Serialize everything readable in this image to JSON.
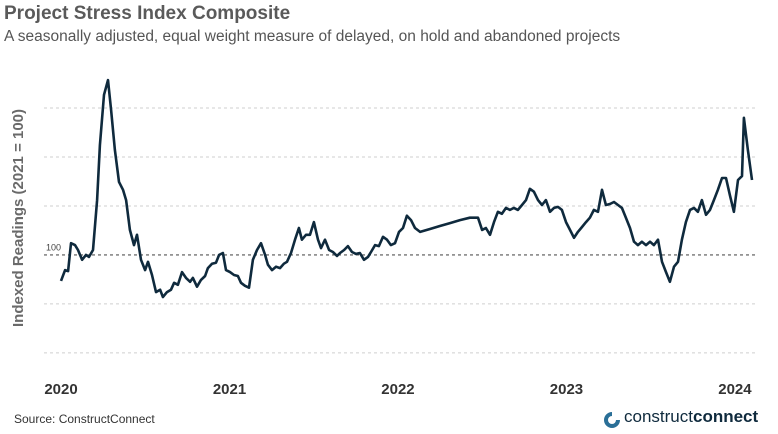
{
  "chart_data": {
    "type": "line",
    "title": "Project Stress Index Composite",
    "subtitle": "A seasonally adjusted, equal weight measure of delayed, on hold and abandoned projects",
    "y_label": "Indexed Readings (2021 = 100)",
    "source": "Source: ConstructConnect",
    "logo": [
      "construct",
      "connect"
    ],
    "xlim": [
      2019.899,
      2024.119
    ],
    "xticks": [
      2020,
      2021,
      2022,
      2023,
      2024
    ],
    "ylim": [
      76.5,
      139.8
    ],
    "yticks": [
      100
    ],
    "ygrid": [
      80,
      90,
      110,
      120,
      130
    ],
    "series": [
      {
        "name": "Project Stress Index Composite",
        "color": "#0f2a3d",
        "x": [
          2020.0,
          2020.024,
          2020.042,
          2020.059,
          2020.083,
          2020.101,
          2020.125,
          2020.148,
          2020.166,
          2020.19,
          2020.214,
          2020.231,
          2020.255,
          2020.279,
          2020.297,
          2020.32,
          2020.344,
          2020.368,
          2020.386,
          2020.409,
          2020.433,
          2020.451,
          2020.475,
          2020.499,
          2020.516,
          2020.54,
          2020.564,
          2020.588,
          2020.605,
          2020.629,
          2020.653,
          2020.671,
          2020.694,
          2020.718,
          2020.742,
          2020.766,
          2020.783,
          2020.807,
          2020.831,
          2020.855,
          2020.872,
          2020.896,
          2020.92,
          2020.938,
          2020.961,
          2020.979,
          2021.003,
          2021.027,
          2021.05,
          2021.068,
          2021.092,
          2021.116,
          2021.139,
          2021.163,
          2021.187,
          2021.211,
          2021.228,
          2021.252,
          2021.276,
          2021.3,
          2021.323,
          2021.341,
          2021.365,
          2021.389,
          2021.412,
          2021.43,
          2021.454,
          2021.478,
          2021.501,
          2021.525,
          2021.543,
          2021.567,
          2021.591,
          2021.614,
          2021.638,
          2021.656,
          2021.68,
          2021.703,
          2021.727,
          2021.751,
          2021.774,
          2021.798,
          2021.822,
          2021.84,
          2021.864,
          2021.887,
          2021.911,
          2021.935,
          2021.958,
          2021.982,
          2022.006,
          2022.03,
          2022.053,
          2022.077,
          2022.101,
          2022.131,
          2022.19,
          2022.249,
          2022.309,
          2022.368,
          2022.427,
          2022.475,
          2022.499,
          2022.522,
          2022.546,
          2022.57,
          2022.593,
          2022.617,
          2022.641,
          2022.665,
          2022.688,
          2022.712,
          2022.736,
          2022.76,
          2022.783,
          2022.807,
          2022.831,
          2022.855,
          2022.878,
          2022.902,
          2022.926,
          2022.95,
          2022.973,
          2022.997,
          2023.021,
          2023.045,
          2023.068,
          2023.092,
          2023.116,
          2023.139,
          2023.163,
          2023.187,
          2023.211,
          2023.234,
          2023.258,
          2023.282,
          2023.306,
          2023.329,
          2023.353,
          2023.377,
          2023.401,
          2023.424,
          2023.448,
          2023.472,
          2023.496,
          2023.519,
          2023.543,
          2023.567,
          2023.591,
          2023.614,
          2023.638,
          2023.662,
          2023.685,
          2023.709,
          2023.733,
          2023.757,
          2023.78,
          2023.804,
          2023.828,
          2023.852,
          2023.875,
          2023.899,
          2023.923,
          2023.947,
          2023.97,
          2023.994,
          2024.018,
          2024.042,
          2024.053,
          2024.077,
          2024.101
        ],
        "values": [
          94.7,
          96.9,
          96.7,
          102.4,
          102,
          101,
          99,
          100,
          99.6,
          101,
          111.2,
          122.4,
          132.7,
          135.7,
          129.6,
          121.4,
          114.9,
          113.3,
          111.2,
          105.1,
          102,
          104.1,
          99,
          96.9,
          98.6,
          95.9,
          92.4,
          92.9,
          91.4,
          92.4,
          92.9,
          94.3,
          93.9,
          96.5,
          95.3,
          94.5,
          95.3,
          93.5,
          94.9,
          95.7,
          97.3,
          98.2,
          98.4,
          100,
          100.4,
          96.9,
          96.5,
          95.9,
          95.7,
          94.3,
          93.7,
          93.3,
          99,
          101,
          102.4,
          100,
          98,
          96.9,
          97.6,
          97.3,
          98.2,
          98.6,
          100.4,
          103.1,
          105.5,
          103.1,
          104.1,
          104.1,
          106.7,
          103.1,
          101.4,
          103.1,
          101,
          100.6,
          99.8,
          100.4,
          101,
          101.8,
          100.6,
          100.2,
          100.4,
          99,
          99.6,
          100.6,
          102,
          101.8,
          103.7,
          103.1,
          102,
          102.4,
          104.7,
          105.5,
          108,
          107.1,
          105.5,
          104.7,
          105.3,
          105.9,
          106.5,
          107.1,
          107.6,
          107.6,
          105.1,
          105.5,
          104.1,
          106.7,
          108.8,
          108.4,
          109.6,
          109.2,
          109.6,
          109.2,
          110.2,
          111.2,
          113.5,
          112.9,
          111.2,
          110.2,
          111.2,
          108.8,
          109.6,
          109.8,
          109.2,
          106.7,
          105.1,
          103.5,
          104.7,
          105.7,
          106.7,
          107.6,
          109.2,
          108.8,
          113.3,
          110.2,
          110.4,
          110.8,
          110.2,
          109.6,
          107.6,
          105.5,
          102.7,
          102,
          102.7,
          102,
          102.7,
          102,
          103.1,
          98.6,
          96.5,
          94.5,
          97.6,
          98.6,
          103.1,
          106.7,
          109.2,
          109.6,
          108.8,
          111.2,
          108.2,
          109.2,
          111.2,
          113.3,
          115.7,
          115.7,
          112.2,
          108.8,
          115.3,
          116.1,
          128,
          121.4,
          115.3
        ]
      }
    ]
  }
}
